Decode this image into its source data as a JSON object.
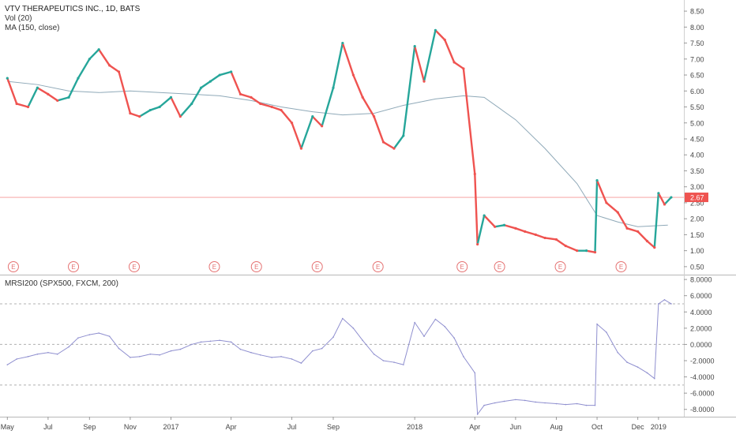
{
  "header": {
    "title": "VTV THERAPEUTICS INC., 1D, BATS",
    "vol_label": "Vol (20)",
    "ma_label": "MA (150, close)"
  },
  "lower_panel": {
    "label": "MRSI200 (SPX500, FXCM, 200)"
  },
  "colors": {
    "up": "#26a69a",
    "down": "#ef5350",
    "ma": "#8fa9b8",
    "indicator": "#8f8fcf",
    "price_line": "#ef5350",
    "earnings": "#e57373"
  },
  "earnings_marker": "E",
  "chart_data": [
    {
      "type": "candlestick",
      "title": "VTV THERAPEUTICS INC., 1D, BATS",
      "series": [
        {
          "name": "MA (150, close)",
          "type": "line",
          "x": [
            "2016-05-01",
            "2016-06-15",
            "2016-08-01",
            "2016-09-15",
            "2016-11-01",
            "2016-12-15",
            "2017-02-01",
            "2017-03-15",
            "2017-05-01",
            "2017-06-15",
            "2017-08-01",
            "2017-09-15",
            "2017-11-01",
            "2017-12-15",
            "2018-02-01",
            "2018-03-15",
            "2018-04-15",
            "2018-06-01",
            "2018-07-15",
            "2018-09-01",
            "2018-10-01",
            "2018-11-01",
            "2018-12-01",
            "2019-01-15"
          ],
          "y": [
            6.3,
            6.2,
            6.0,
            5.95,
            6.0,
            5.95,
            5.9,
            5.85,
            5.7,
            5.5,
            5.35,
            5.25,
            5.3,
            5.55,
            5.75,
            5.85,
            5.8,
            5.1,
            4.2,
            3.1,
            2.1,
            1.9,
            1.75,
            1.8
          ]
        },
        {
          "name": "Close",
          "type": "line",
          "x": [
            "2016-05-01",
            "2016-05-15",
            "2016-06-01",
            "2016-06-15",
            "2016-07-01",
            "2016-07-15",
            "2016-08-01",
            "2016-08-15",
            "2016-09-01",
            "2016-09-15",
            "2016-10-01",
            "2016-10-15",
            "2016-11-01",
            "2016-11-15",
            "2016-12-01",
            "2016-12-15",
            "2017-01-01",
            "2017-01-15",
            "2017-02-01",
            "2017-02-15",
            "2017-03-01",
            "2017-03-15",
            "2017-04-01",
            "2017-04-15",
            "2017-05-01",
            "2017-05-15",
            "2017-06-01",
            "2017-06-15",
            "2017-07-01",
            "2017-07-15",
            "2017-08-01",
            "2017-08-15",
            "2017-09-01",
            "2017-09-15",
            "2017-10-01",
            "2017-10-15",
            "2017-11-01",
            "2017-11-15",
            "2017-12-01",
            "2017-12-15",
            "2018-01-01",
            "2018-01-15",
            "2018-02-01",
            "2018-02-15",
            "2018-03-01",
            "2018-03-15",
            "2018-04-01",
            "2018-04-05",
            "2018-04-15",
            "2018-05-01",
            "2018-05-15",
            "2018-06-01",
            "2018-06-15",
            "2018-07-01",
            "2018-07-15",
            "2018-08-01",
            "2018-08-15",
            "2018-09-01",
            "2018-09-15",
            "2018-09-28",
            "2018-10-01",
            "2018-10-15",
            "2018-11-01",
            "2018-11-15",
            "2018-12-01",
            "2018-12-15",
            "2018-12-26",
            "2019-01-01",
            "2019-01-10",
            "2019-01-20"
          ],
          "y": [
            6.4,
            5.6,
            5.5,
            6.1,
            5.9,
            5.7,
            5.8,
            6.4,
            7.0,
            7.3,
            6.8,
            6.6,
            5.3,
            5.2,
            5.4,
            5.5,
            5.8,
            5.2,
            5.6,
            6.1,
            6.3,
            6.5,
            6.6,
            5.9,
            5.8,
            5.6,
            5.5,
            5.4,
            5.0,
            4.2,
            5.2,
            4.9,
            6.1,
            7.5,
            6.5,
            5.8,
            5.2,
            4.4,
            4.2,
            4.6,
            7.4,
            6.3,
            7.9,
            7.6,
            6.9,
            6.7,
            3.4,
            1.2,
            2.1,
            1.75,
            1.8,
            1.7,
            1.6,
            1.5,
            1.4,
            1.35,
            1.15,
            1.0,
            1.0,
            0.95,
            3.2,
            2.5,
            2.2,
            1.7,
            1.6,
            1.3,
            1.1,
            2.8,
            2.45,
            2.67
          ]
        }
      ],
      "last_price_label": "2.67",
      "y_ticks": [
        "8.50",
        "8.00",
        "7.50",
        "7.00",
        "6.50",
        "6.00",
        "5.50",
        "5.00",
        "4.50",
        "4.00",
        "3.50",
        "3.00",
        "2.50",
        "2.00",
        "1.50",
        "1.00",
        "0.50"
      ],
      "ylim": [
        0.25,
        8.7
      ],
      "grid": false
    },
    {
      "type": "line",
      "title": "MRSI200 (SPX500, FXCM, 200)",
      "series": [
        {
          "name": "MRSI200",
          "x": [
            "2016-05-01",
            "2016-05-15",
            "2016-06-01",
            "2016-06-15",
            "2016-07-01",
            "2016-07-15",
            "2016-08-01",
            "2016-08-15",
            "2016-09-01",
            "2016-09-15",
            "2016-10-01",
            "2016-10-15",
            "2016-11-01",
            "2016-11-15",
            "2016-12-01",
            "2016-12-15",
            "2017-01-01",
            "2017-01-15",
            "2017-02-01",
            "2017-02-15",
            "2017-03-01",
            "2017-03-15",
            "2017-04-01",
            "2017-04-15",
            "2017-05-01",
            "2017-05-15",
            "2017-06-01",
            "2017-06-15",
            "2017-07-01",
            "2017-07-15",
            "2017-08-01",
            "2017-08-15",
            "2017-09-01",
            "2017-09-15",
            "2017-10-01",
            "2017-10-15",
            "2017-11-01",
            "2017-11-15",
            "2017-12-01",
            "2017-12-15",
            "2018-01-01",
            "2018-01-15",
            "2018-02-01",
            "2018-02-15",
            "2018-03-01",
            "2018-03-15",
            "2018-04-01",
            "2018-04-05",
            "2018-04-15",
            "2018-05-01",
            "2018-05-15",
            "2018-06-01",
            "2018-06-15",
            "2018-07-01",
            "2018-07-15",
            "2018-08-01",
            "2018-08-15",
            "2018-09-01",
            "2018-09-15",
            "2018-09-28",
            "2018-10-01",
            "2018-10-15",
            "2018-11-01",
            "2018-11-15",
            "2018-12-01",
            "2018-12-15",
            "2018-12-26",
            "2019-01-01",
            "2019-01-10",
            "2019-01-20"
          ],
          "y": [
            -2.5,
            -1.8,
            -1.5,
            -1.2,
            -1.0,
            -1.2,
            -0.3,
            0.8,
            1.2,
            1.4,
            1.0,
            -0.5,
            -1.6,
            -1.5,
            -1.2,
            -1.3,
            -0.8,
            -0.6,
            0.0,
            0.3,
            0.4,
            0.5,
            0.3,
            -0.6,
            -1.0,
            -1.3,
            -1.6,
            -1.5,
            -1.8,
            -2.3,
            -0.8,
            -0.5,
            0.9,
            3.2,
            2.0,
            0.5,
            -1.2,
            -2.0,
            -2.2,
            -2.5,
            2.7,
            1.0,
            3.1,
            2.2,
            0.8,
            -1.5,
            -3.5,
            -8.6,
            -7.5,
            -7.2,
            -7.0,
            -6.8,
            -6.9,
            -7.1,
            -7.2,
            -7.3,
            -7.4,
            -7.3,
            -7.5,
            -7.5,
            2.5,
            1.5,
            -1.0,
            -2.2,
            -2.8,
            -3.5,
            -4.2,
            5.0,
            5.5,
            5.0
          ]
        }
      ],
      "y_ticks": [
        "8.0000",
        "6.0000",
        "4.0000",
        "2.0000",
        "0.0000",
        "-2.0000",
        "-4.0000",
        "-6.0000",
        "-8.0000"
      ],
      "reference_lines": [
        5.0,
        0.0,
        -5.0
      ],
      "ylim": [
        -8.9,
        8.4
      ]
    }
  ],
  "x_axis": {
    "ticks": [
      {
        "date": "2016-05-01",
        "label": "May"
      },
      {
        "date": "2016-07-01",
        "label": "Jul"
      },
      {
        "date": "2016-09-01",
        "label": "Sep"
      },
      {
        "date": "2016-11-01",
        "label": "Nov"
      },
      {
        "date": "2017-01-01",
        "label": "2017"
      },
      {
        "date": "2017-04-01",
        "label": "Apr"
      },
      {
        "date": "2017-07-01",
        "label": "Jul"
      },
      {
        "date": "2017-09-01",
        "label": "Sep"
      },
      {
        "date": "2018-01-01",
        "label": "2018"
      },
      {
        "date": "2018-04-01",
        "label": "Apr"
      },
      {
        "date": "2018-06-01",
        "label": "Jun"
      },
      {
        "date": "2018-08-01",
        "label": "Aug"
      },
      {
        "date": "2018-10-01",
        "label": "Oct"
      },
      {
        "date": "2018-12-01",
        "label": "Dec"
      },
      {
        "date": "2019-01-01",
        "label": "2019"
      }
    ]
  },
  "earnings_dates": [
    "2016-05-10",
    "2016-08-08",
    "2016-11-07",
    "2017-03-07",
    "2017-05-09",
    "2017-08-08",
    "2017-11-07",
    "2018-03-13",
    "2018-05-08",
    "2018-08-07",
    "2018-11-06"
  ]
}
